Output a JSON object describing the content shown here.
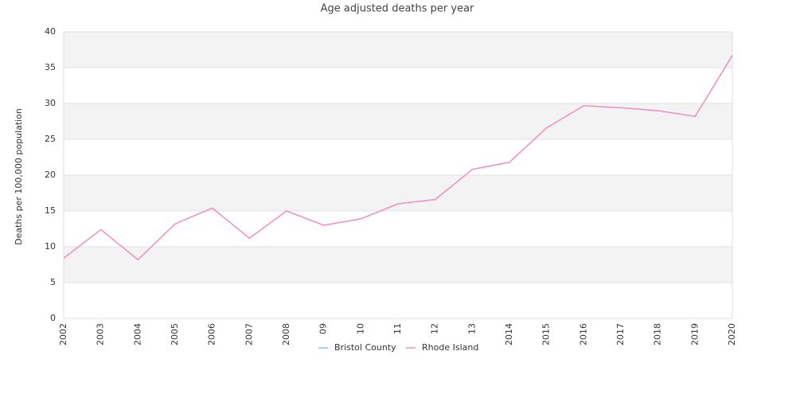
{
  "chart_data": {
    "type": "line",
    "title": "Age adjusted deaths per year",
    "y_label": "Deaths per 100,000 population",
    "categories": [
      "2002",
      "2003",
      "2004",
      "2005",
      "2006",
      "2007",
      "2008",
      "09",
      "10",
      "11",
      "12",
      "13",
      "2014",
      "2015",
      "2016",
      "2017",
      "2018",
      "2019",
      "2020"
    ],
    "series": [
      {
        "name": "Bristol County",
        "color": "#7ec8d8",
        "values": [
          null,
          null,
          null,
          null,
          null,
          null,
          null,
          null,
          null,
          null,
          null,
          null,
          null,
          null,
          null,
          null,
          null,
          null,
          null
        ]
      },
      {
        "name": "Rhode Island",
        "color": "#f08dbd",
        "values": [
          8.4,
          12.4,
          8.2,
          13.2,
          15.4,
          11.2,
          15.0,
          13.0,
          13.9,
          16.0,
          16.6,
          20.8,
          21.8,
          26.6,
          29.7,
          29.4,
          29.0,
          28.2,
          36.7
        ]
      }
    ],
    "ylim": [
      0,
      40
    ],
    "yticks": [
      0,
      5,
      10,
      15,
      20,
      25,
      30,
      35,
      40
    ],
    "grid": true,
    "legend": "bottom"
  }
}
